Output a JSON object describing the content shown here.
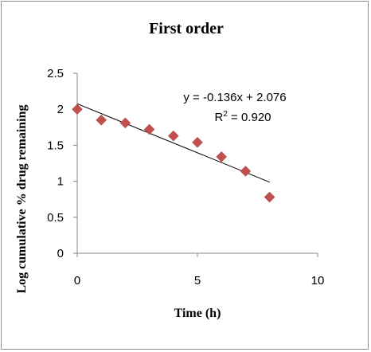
{
  "chart_data": {
    "type": "scatter",
    "title": "First order",
    "xlabel": "Time (h)",
    "ylabel": "Log cumulative % drug remaining",
    "xlim": [
      0,
      10
    ],
    "ylim": [
      0,
      2.5
    ],
    "x_ticks": [
      "0",
      "5",
      "10"
    ],
    "y_ticks": [
      "0",
      "0.5",
      "1",
      "1.5",
      "2",
      "2.5"
    ],
    "grid": false,
    "legend": "none",
    "series": [
      {
        "x": [
          0,
          1,
          2,
          3,
          4,
          5,
          6,
          7,
          8
        ],
        "y": [
          2.0,
          1.85,
          1.81,
          1.72,
          1.63,
          1.54,
          1.34,
          1.14,
          0.78
        ],
        "marker": "diamond",
        "color": "#c0504d"
      }
    ],
    "trendline": {
      "type": "linear",
      "slope": -0.136,
      "intercept": 2.076,
      "x_range": [
        0,
        8
      ],
      "color": "#000000",
      "equation_label": "y = -0.136x + 2.076",
      "r2_prefix": "R",
      "r2_sup": "2",
      "r2_suffix": " = 0.920"
    }
  }
}
